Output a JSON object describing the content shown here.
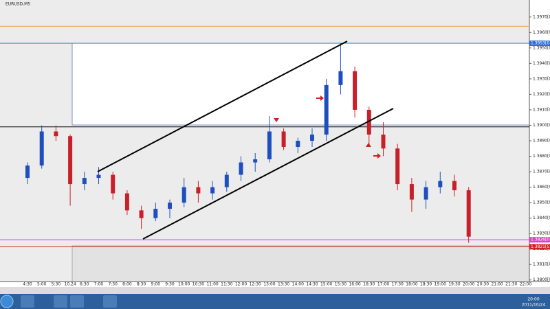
{
  "window_title": "EURUSD,M5",
  "chart_data": {
    "type": "candlestick",
    "title": "EURUSD,M5",
    "categories": [
      "4:30",
      "5:00",
      "5:30",
      "10.24",
      "6:30",
      "7:00",
      "7:30",
      "8:00",
      "8:30",
      "9:00",
      "9:30",
      "10:00",
      "10:30",
      "11:00",
      "11:30",
      "12:00",
      "12:30",
      "13:00",
      "13:30",
      "14:00",
      "14:30",
      "15:00",
      "15:30",
      "16:00",
      "16:30",
      "17:00",
      "17:30",
      "18:00",
      "18:30",
      "19:00",
      "19:30",
      "20:00",
      "20:30",
      "21:00",
      "21:30",
      "22:00"
    ],
    "open": [
      1.3866,
      1.3874,
      1.3896,
      1.3893,
      1.3862,
      1.3866,
      1.3868,
      1.3856,
      1.3845,
      1.384,
      1.3846,
      1.385,
      1.386,
      1.3856,
      1.386,
      1.3868,
      1.3876,
      1.3878,
      1.3896,
      1.3886,
      1.389,
      1.3894,
      1.3926,
      1.3935,
      1.391,
      1.3894,
      1.3885,
      1.3862,
      1.3852,
      1.386,
      1.3864,
      1.3858,
      null,
      null,
      null,
      null
    ],
    "high": [
      1.3876,
      1.39,
      1.39,
      1.3894,
      1.387,
      1.3873,
      1.387,
      1.3858,
      1.3848,
      1.385,
      1.3852,
      1.3866,
      1.3864,
      1.3864,
      1.387,
      1.388,
      1.3882,
      1.3906,
      1.3898,
      1.3892,
      1.3898,
      1.393,
      1.3953,
      1.3938,
      1.3912,
      1.3902,
      1.3888,
      1.3866,
      1.3864,
      1.387,
      1.3868,
      1.386,
      null,
      null,
      null,
      null
    ],
    "low": [
      1.3862,
      1.3872,
      1.389,
      1.3848,
      1.3858,
      1.3862,
      1.3852,
      1.3842,
      1.3833,
      1.3838,
      1.384,
      1.3847,
      1.385,
      1.3852,
      1.3857,
      1.3864,
      1.387,
      1.3876,
      1.3884,
      1.3882,
      1.3886,
      1.389,
      1.392,
      1.3905,
      1.3886,
      1.388,
      1.3858,
      1.3844,
      1.3846,
      1.3856,
      1.3854,
      1.3824,
      null,
      null,
      null,
      null
    ],
    "close": [
      1.3874,
      1.3896,
      1.3893,
      1.3862,
      1.3866,
      1.3868,
      1.3856,
      1.3845,
      1.384,
      1.3846,
      1.385,
      1.386,
      1.3856,
      1.386,
      1.3868,
      1.3876,
      1.3878,
      1.3896,
      1.3886,
      1.389,
      1.3894,
      1.3926,
      1.3935,
      1.391,
      1.3894,
      1.3885,
      1.3862,
      1.3852,
      1.386,
      1.3864,
      1.3858,
      1.3828,
      null,
      null,
      null,
      null
    ],
    "up_color": "#1f4fbf",
    "down_color": "#c8202a",
    "ylim": [
      1.3799,
      1.3973
    ],
    "yticks": [
      {
        "value": 1.397,
        "label": "1.3970[0]"
      },
      {
        "value": 1.396,
        "label": "1.3960[0]"
      },
      {
        "value": 1.395,
        "label": "1.3950[0]"
      },
      {
        "value": 1.394,
        "label": "1.3940[0]"
      },
      {
        "value": 1.393,
        "label": "1.3930[0]"
      },
      {
        "value": 1.392,
        "label": "1.3920[0]"
      },
      {
        "value": 1.391,
        "label": "1.3910[0]"
      },
      {
        "value": 1.39,
        "label": "1.3900[0]"
      },
      {
        "value": 1.389,
        "label": "1.3890[0]"
      },
      {
        "value": 1.388,
        "label": "1.3880[0]"
      },
      {
        "value": 1.387,
        "label": "1.3870[0]"
      },
      {
        "value": 1.386,
        "label": "1.3860[0]"
      },
      {
        "value": 1.385,
        "label": "1.3850[0]"
      },
      {
        "value": 1.384,
        "label": "1.3840[0]"
      },
      {
        "value": 1.383,
        "label": "1.3830[0]"
      },
      {
        "value": 1.382,
        "label": "1.3820[0]"
      },
      {
        "value": 1.381,
        "label": "1.3810[0]"
      },
      {
        "value": 1.38,
        "label": "1.3800[0]"
      }
    ],
    "levels": [
      {
        "value": 1.3964,
        "color": "#f0a040"
      },
      {
        "value": 1.3953,
        "label": "1.3953[0]",
        "color": "#2a6fd8"
      },
      {
        "value": 1.3899,
        "color": "#000000"
      },
      {
        "value": 1.3826,
        "label": "1.3826[0]",
        "color": "#e040c0"
      },
      {
        "value": 1.38215,
        "label": "1.3821[5]",
        "color": "#d02020"
      }
    ]
  },
  "taskbar": {
    "time": "20:00",
    "date": "2011/10/24"
  }
}
